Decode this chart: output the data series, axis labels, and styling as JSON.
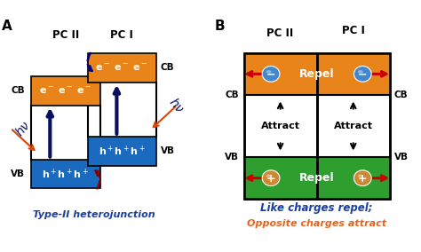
{
  "bg_color": "#ffffff",
  "orange_color": "#e8841a",
  "blue_color": "#1a6abf",
  "green_color": "#2e9e2e",
  "dark_blue_arrow": "#0a1060",
  "label_color_blue": "#1a3fa0",
  "label_color_orange": "#e8621a",
  "red_color": "#cc0000",
  "PC_II_label": "PC II",
  "PC_I_label": "PC I",
  "CB_label": "CB",
  "VB_label": "VB",
  "A_label": "A",
  "B_label": "B",
  "typeII_label": "Type-II heterojunction",
  "like_label": "Like charges repel;",
  "opposite_label": "Opposite charges attract",
  "repel_label": "Repel",
  "attract_label": "Attract",
  "electron_text": "e⁻ e⁻ e⁻",
  "hole_text": "h⁺ h⁺ h⁺"
}
